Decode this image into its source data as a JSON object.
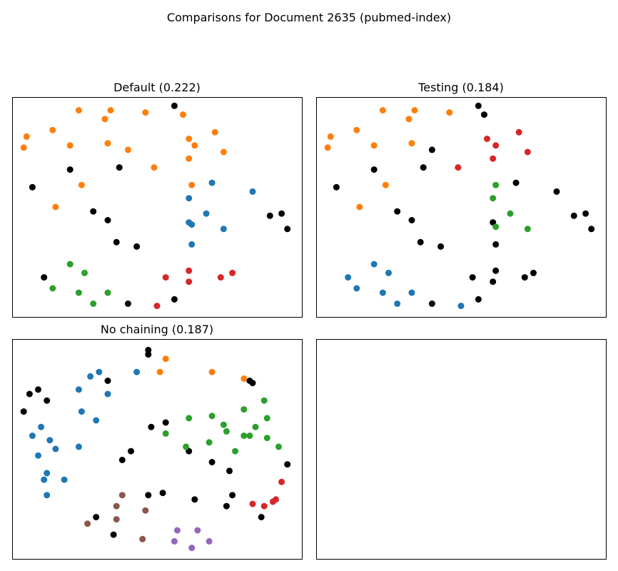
{
  "figure": {
    "title": "Comparisons for Document 2635 (pubmed-index)"
  },
  "chart_data": [
    {
      "type": "scatter",
      "title": "Default (0.222)",
      "xlim": [
        0,
        1
      ],
      "ylim": [
        0,
        1
      ],
      "axes_visible": false,
      "series": [
        {
          "color": "#000000",
          "points": [
            [
              0.07,
              0.59
            ],
            [
              0.2,
              0.67
            ],
            [
              0.37,
              0.68
            ],
            [
              0.28,
              0.48
            ],
            [
              0.33,
              0.44
            ],
            [
              0.36,
              0.34
            ],
            [
              0.43,
              0.32
            ],
            [
              0.93,
              0.47
            ],
            [
              0.89,
              0.46
            ],
            [
              0.95,
              0.4
            ],
            [
              0.11,
              0.18
            ],
            [
              0.4,
              0.06
            ],
            [
              0.56,
              0.08
            ],
            [
              0.56,
              0.96
            ]
          ]
        },
        {
          "color": "#ff7f0e",
          "points": [
            [
              0.23,
              0.94
            ],
            [
              0.32,
              0.9
            ],
            [
              0.34,
              0.94
            ],
            [
              0.46,
              0.93
            ],
            [
              0.59,
              0.92
            ],
            [
              0.05,
              0.82
            ],
            [
              0.04,
              0.77
            ],
            [
              0.14,
              0.85
            ],
            [
              0.2,
              0.78
            ],
            [
              0.33,
              0.79
            ],
            [
              0.4,
              0.76
            ],
            [
              0.61,
              0.81
            ],
            [
              0.63,
              0.78
            ],
            [
              0.7,
              0.84
            ],
            [
              0.73,
              0.75
            ],
            [
              0.61,
              0.72
            ],
            [
              0.49,
              0.68
            ],
            [
              0.24,
              0.6
            ],
            [
              0.62,
              0.6
            ],
            [
              0.15,
              0.5
            ]
          ]
        },
        {
          "color": "#1f77b4",
          "points": [
            [
              0.69,
              0.61
            ],
            [
              0.83,
              0.57
            ],
            [
              0.61,
              0.54
            ],
            [
              0.67,
              0.47
            ],
            [
              0.61,
              0.43
            ],
            [
              0.62,
              0.42
            ],
            [
              0.73,
              0.4
            ],
            [
              0.62,
              0.33
            ]
          ]
        },
        {
          "color": "#2ca02c",
          "points": [
            [
              0.2,
              0.24
            ],
            [
              0.25,
              0.2
            ],
            [
              0.14,
              0.13
            ],
            [
              0.23,
              0.11
            ],
            [
              0.33,
              0.11
            ],
            [
              0.28,
              0.06
            ]
          ]
        },
        {
          "color": "#d62728",
          "points": [
            [
              0.61,
              0.21
            ],
            [
              0.76,
              0.2
            ],
            [
              0.53,
              0.18
            ],
            [
              0.61,
              0.16
            ],
            [
              0.72,
              0.18
            ],
            [
              0.5,
              0.05
            ]
          ]
        }
      ]
    },
    {
      "type": "scatter",
      "title": "Testing (0.184)",
      "xlim": [
        0,
        1
      ],
      "ylim": [
        0,
        1
      ],
      "axes_visible": false,
      "series": [
        {
          "color": "#000000",
          "points": [
            [
              0.56,
              0.96
            ],
            [
              0.58,
              0.92
            ],
            [
              0.4,
              0.76
            ],
            [
              0.2,
              0.67
            ],
            [
              0.37,
              0.68
            ],
            [
              0.07,
              0.59
            ],
            [
              0.69,
              0.61
            ],
            [
              0.83,
              0.57
            ],
            [
              0.93,
              0.47
            ],
            [
              0.89,
              0.46
            ],
            [
              0.95,
              0.4
            ],
            [
              0.28,
              0.48
            ],
            [
              0.33,
              0.44
            ],
            [
              0.36,
              0.34
            ],
            [
              0.43,
              0.32
            ],
            [
              0.61,
              0.43
            ],
            [
              0.62,
              0.33
            ],
            [
              0.62,
              0.21
            ],
            [
              0.54,
              0.18
            ],
            [
              0.61,
              0.16
            ],
            [
              0.72,
              0.18
            ],
            [
              0.75,
              0.2
            ],
            [
              0.4,
              0.06
            ],
            [
              0.56,
              0.08
            ]
          ]
        },
        {
          "color": "#ff7f0e",
          "points": [
            [
              0.23,
              0.94
            ],
            [
              0.32,
              0.9
            ],
            [
              0.34,
              0.94
            ],
            [
              0.46,
              0.93
            ],
            [
              0.05,
              0.82
            ],
            [
              0.04,
              0.77
            ],
            [
              0.14,
              0.85
            ],
            [
              0.2,
              0.78
            ],
            [
              0.33,
              0.79
            ],
            [
              0.24,
              0.6
            ],
            [
              0.15,
              0.5
            ]
          ]
        },
        {
          "color": "#d62728",
          "points": [
            [
              0.59,
              0.81
            ],
            [
              0.62,
              0.78
            ],
            [
              0.7,
              0.84
            ],
            [
              0.73,
              0.75
            ],
            [
              0.61,
              0.72
            ],
            [
              0.49,
              0.68
            ]
          ]
        },
        {
          "color": "#2ca02c",
          "points": [
            [
              0.62,
              0.6
            ],
            [
              0.61,
              0.54
            ],
            [
              0.67,
              0.47
            ],
            [
              0.62,
              0.41
            ],
            [
              0.73,
              0.4
            ]
          ]
        },
        {
          "color": "#1f77b4",
          "points": [
            [
              0.2,
              0.24
            ],
            [
              0.25,
              0.2
            ],
            [
              0.11,
              0.18
            ],
            [
              0.14,
              0.13
            ],
            [
              0.23,
              0.11
            ],
            [
              0.33,
              0.11
            ],
            [
              0.28,
              0.06
            ],
            [
              0.5,
              0.05
            ]
          ]
        }
      ]
    },
    {
      "type": "scatter",
      "title": "No chaining (0.187)",
      "xlim": [
        0,
        1
      ],
      "ylim": [
        0,
        1
      ],
      "axes_visible": false,
      "series": [
        {
          "color": "#000000",
          "points": [
            [
              0.47,
              0.95
            ],
            [
              0.47,
              0.93
            ],
            [
              0.33,
              0.81
            ],
            [
              0.82,
              0.81
            ],
            [
              0.83,
              0.8
            ],
            [
              0.06,
              0.75
            ],
            [
              0.09,
              0.77
            ],
            [
              0.12,
              0.72
            ],
            [
              0.04,
              0.67
            ],
            [
              0.53,
              0.62
            ],
            [
              0.48,
              0.6
            ],
            [
              0.41,
              0.49
            ],
            [
              0.38,
              0.45
            ],
            [
              0.61,
              0.49
            ],
            [
              0.69,
              0.44
            ],
            [
              0.75,
              0.4
            ],
            [
              0.95,
              0.43
            ],
            [
              0.47,
              0.29
            ],
            [
              0.52,
              0.3
            ],
            [
              0.63,
              0.27
            ],
            [
              0.76,
              0.29
            ],
            [
              0.74,
              0.24
            ],
            [
              0.86,
              0.19
            ],
            [
              0.29,
              0.19
            ],
            [
              0.35,
              0.11
            ]
          ]
        },
        {
          "color": "#ff7f0e",
          "points": [
            [
              0.53,
              0.91
            ],
            [
              0.51,
              0.85
            ],
            [
              0.69,
              0.85
            ],
            [
              0.8,
              0.82
            ]
          ]
        },
        {
          "color": "#1f77b4",
          "points": [
            [
              0.3,
              0.85
            ],
            [
              0.27,
              0.83
            ],
            [
              0.43,
              0.85
            ],
            [
              0.23,
              0.77
            ],
            [
              0.33,
              0.75
            ],
            [
              0.24,
              0.67
            ],
            [
              0.29,
              0.63
            ],
            [
              0.1,
              0.6
            ],
            [
              0.07,
              0.56
            ],
            [
              0.13,
              0.54
            ],
            [
              0.15,
              0.5
            ],
            [
              0.23,
              0.51
            ],
            [
              0.09,
              0.47
            ],
            [
              0.12,
              0.39
            ],
            [
              0.11,
              0.36
            ],
            [
              0.18,
              0.36
            ],
            [
              0.12,
              0.29
            ]
          ]
        },
        {
          "color": "#2ca02c",
          "points": [
            [
              0.87,
              0.72
            ],
            [
              0.8,
              0.68
            ],
            [
              0.88,
              0.64
            ],
            [
              0.61,
              0.64
            ],
            [
              0.69,
              0.65
            ],
            [
              0.73,
              0.61
            ],
            [
              0.74,
              0.58
            ],
            [
              0.84,
              0.6
            ],
            [
              0.53,
              0.57
            ],
            [
              0.8,
              0.56
            ],
            [
              0.82,
              0.56
            ],
            [
              0.88,
              0.55
            ],
            [
              0.68,
              0.53
            ],
            [
              0.6,
              0.51
            ],
            [
              0.77,
              0.49
            ],
            [
              0.92,
              0.51
            ]
          ]
        },
        {
          "color": "#d62728",
          "points": [
            [
              0.93,
              0.35
            ],
            [
              0.83,
              0.25
            ],
            [
              0.91,
              0.27
            ],
            [
              0.9,
              0.26
            ],
            [
              0.87,
              0.24
            ]
          ]
        },
        {
          "color": "#8c564b",
          "points": [
            [
              0.38,
              0.29
            ],
            [
              0.36,
              0.24
            ],
            [
              0.46,
              0.22
            ],
            [
              0.36,
              0.18
            ],
            [
              0.26,
              0.16
            ],
            [
              0.45,
              0.09
            ]
          ]
        },
        {
          "color": "#9467bd",
          "points": [
            [
              0.57,
              0.13
            ],
            [
              0.64,
              0.13
            ],
            [
              0.56,
              0.08
            ],
            [
              0.68,
              0.08
            ],
            [
              0.62,
              0.05
            ]
          ]
        }
      ]
    }
  ]
}
